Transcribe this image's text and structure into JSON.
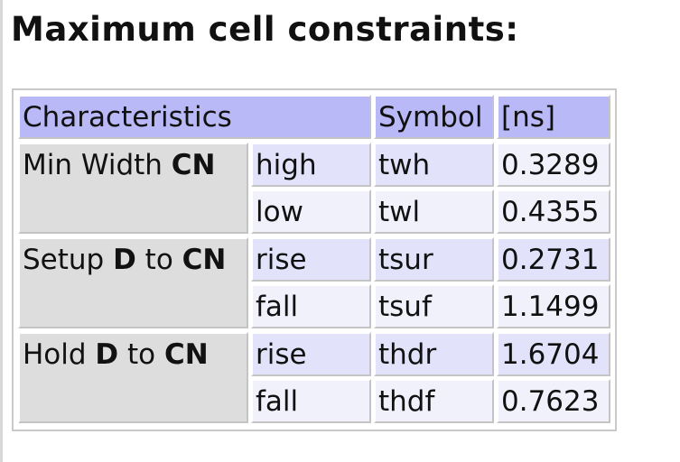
{
  "title": "Maximum cell constraints:",
  "header": {
    "characteristics": "Characteristics",
    "symbol": "Symbol",
    "unit": "[ns]"
  },
  "groups": [
    {
      "parts": [
        "Min Width ",
        "CN",
        "",
        ""
      ],
      "rows": [
        {
          "level": "high",
          "symbol": "twh",
          "value": "0.3289"
        },
        {
          "level": "low",
          "symbol": "twl",
          "value": "0.4355"
        }
      ]
    },
    {
      "parts": [
        "Setup ",
        "D",
        " to ",
        "CN"
      ],
      "rows": [
        {
          "level": "rise",
          "symbol": "tsur",
          "value": "0.2731"
        },
        {
          "level": "fall",
          "symbol": "tsuf",
          "value": "1.1499"
        }
      ]
    },
    {
      "parts": [
        "Hold ",
        "D",
        " to ",
        "CN"
      ],
      "rows": [
        {
          "level": "rise",
          "symbol": "thdr",
          "value": "1.6704"
        },
        {
          "level": "fall",
          "symbol": "thdf",
          "value": "0.7623"
        }
      ]
    }
  ],
  "colors": {
    "header_bg": "#b9b9f8",
    "group_bg": "#dddddd",
    "row_a_bg": "#e2e2fb",
    "row_b_bg": "#f1f1fc"
  }
}
